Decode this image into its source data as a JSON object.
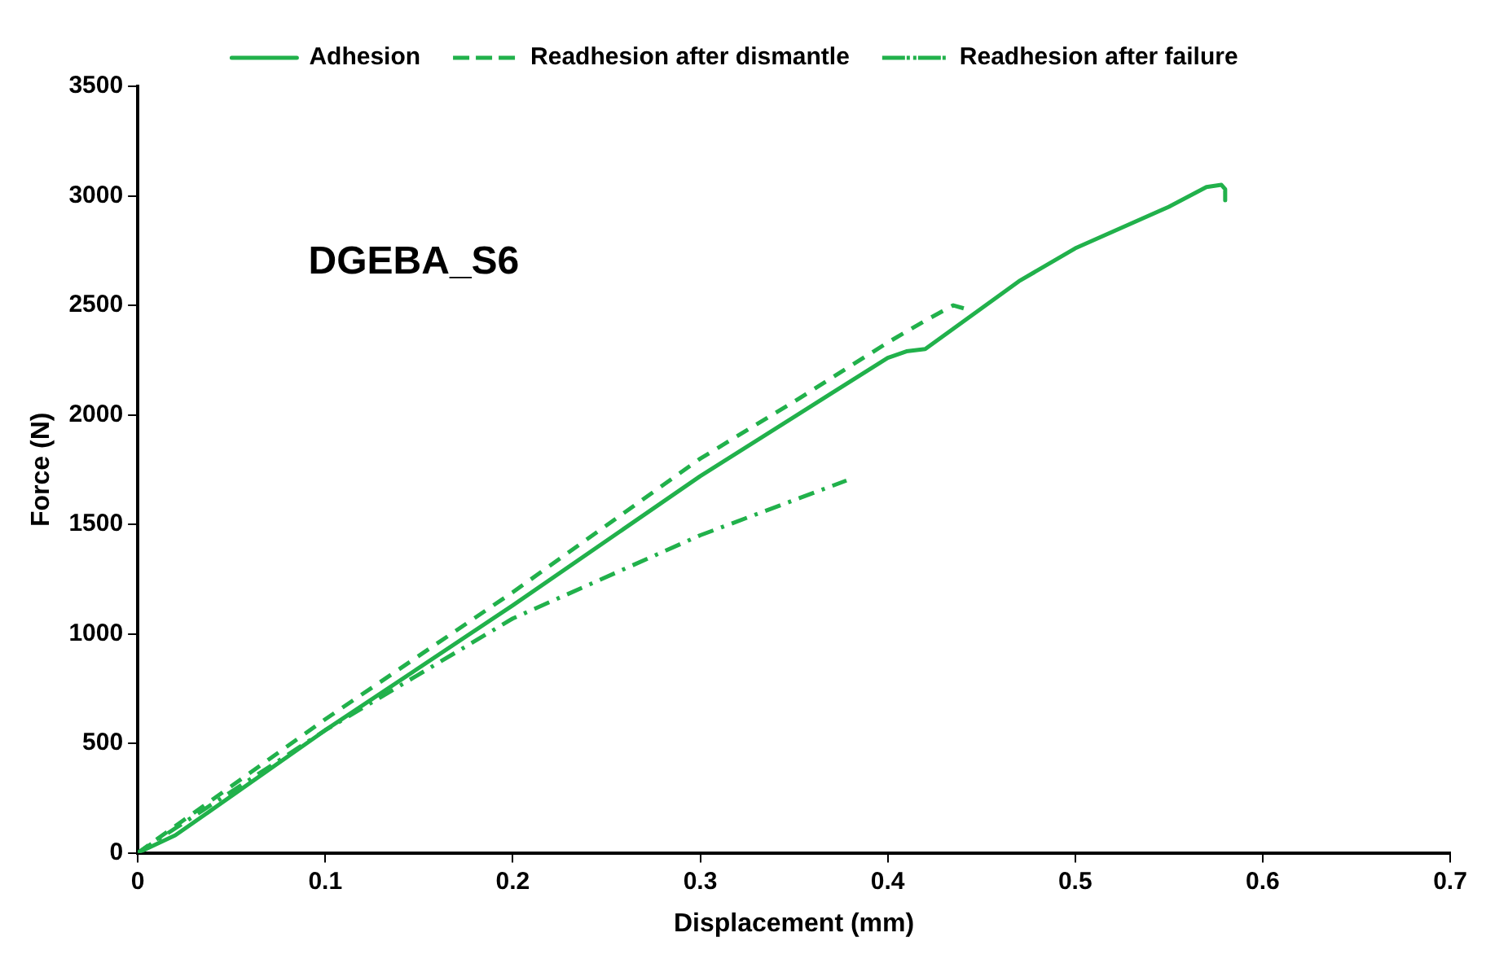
{
  "chart_data": {
    "type": "line",
    "xlabel": "Displacement (mm)",
    "ylabel": "Force (N)",
    "annotations": [
      "DGEBA_S6"
    ],
    "xlim": [
      0,
      0.7
    ],
    "xticks": [
      0,
      0.1,
      0.2,
      0.3,
      0.4,
      0.5,
      0.6,
      0.7
    ],
    "ylim": [
      0,
      3500
    ],
    "yticks": [
      0,
      500,
      1000,
      1500,
      2000,
      2500,
      3000,
      3500
    ],
    "grid": false,
    "legend": "top",
    "marker": "none",
    "series": [
      {
        "name": "Adhesion",
        "color": "#21b14b",
        "line_style": "solid",
        "x": [
          0,
          0.02,
          0.1,
          0.2,
          0.3,
          0.4,
          0.41,
          0.42,
          0.47,
          0.5,
          0.55,
          0.57,
          0.578,
          0.58,
          0.58
        ],
        "values": [
          0,
          80,
          560,
          1130,
          1720,
          2260,
          2290,
          2300,
          2610,
          2760,
          2950,
          3040,
          3050,
          3030,
          2980
        ]
      },
      {
        "name": "Readhesion after dismantle",
        "color": "#21b14b",
        "line_style": "dashed",
        "x": [
          0,
          0.1,
          0.2,
          0.3,
          0.35,
          0.4,
          0.42,
          0.435,
          0.443
        ],
        "values": [
          0,
          610,
          1190,
          1800,
          2060,
          2330,
          2430,
          2500,
          2480
        ]
      },
      {
        "name": "Readhesion after failure",
        "color": "#21b14b",
        "line_style": "dashdot",
        "x": [
          0,
          0.1,
          0.2,
          0.3,
          0.378
        ],
        "values": [
          0,
          560,
          1070,
          1450,
          1700
        ]
      }
    ]
  }
}
